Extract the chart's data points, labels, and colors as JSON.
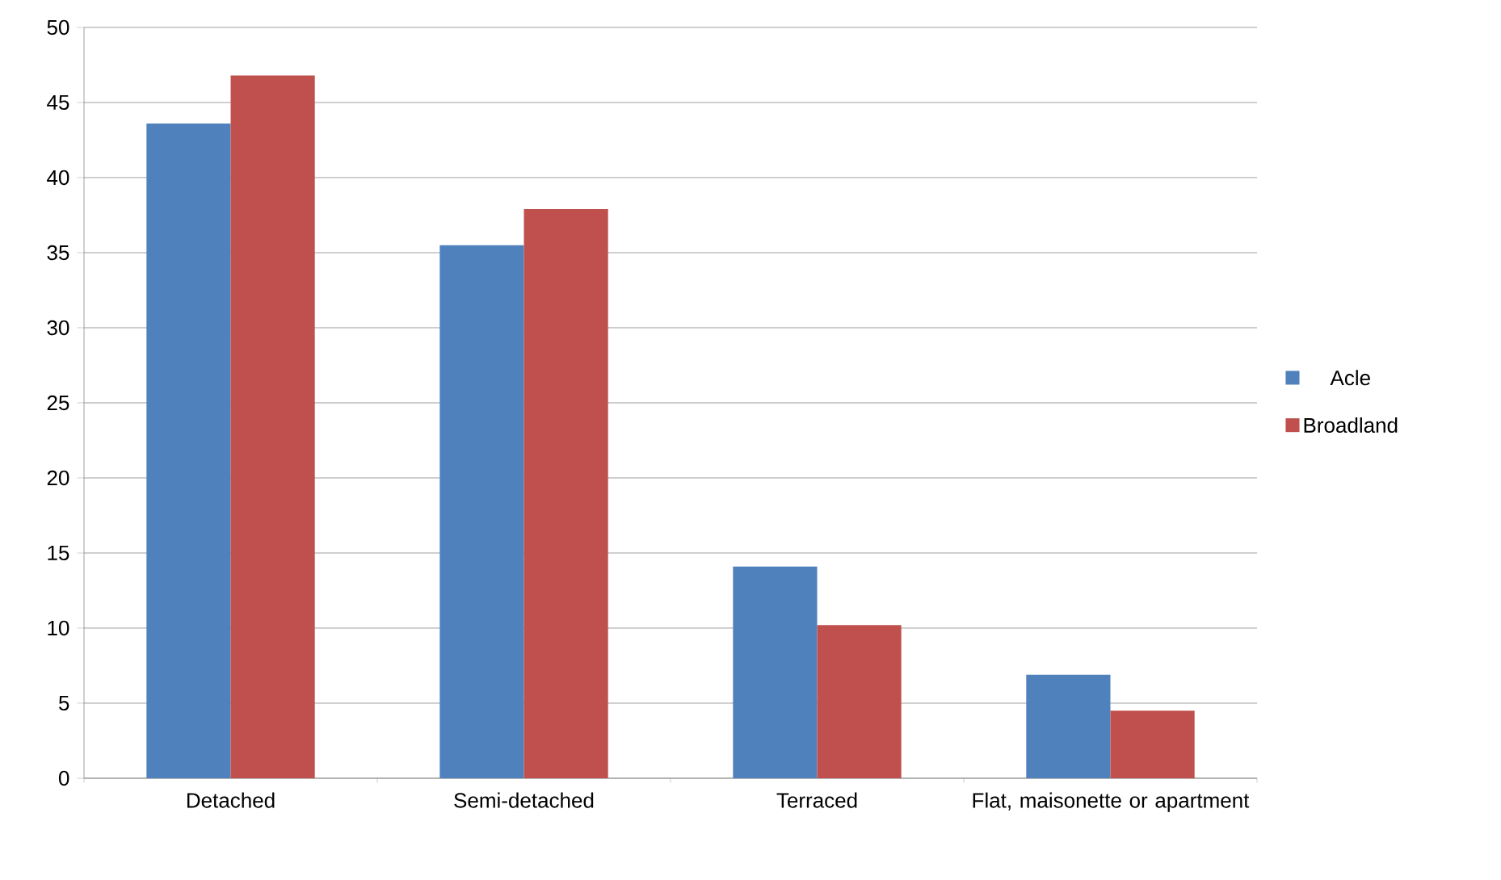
{
  "chart_data": {
    "type": "bar",
    "categories": [
      "Detached",
      "Semi-detached",
      "Terraced",
      "Flat, maisonette or apartment"
    ],
    "series": [
      {
        "name": "Acle",
        "color": "#4f81bd",
        "values": [
          43.6,
          35.5,
          14.1,
          6.9
        ]
      },
      {
        "name": "Broadland",
        "color": "#c0504d",
        "values": [
          46.8,
          37.9,
          10.2,
          4.5
        ]
      }
    ],
    "ylim": [
      0,
      50
    ],
    "yticks": [
      0,
      5,
      10,
      15,
      20,
      25,
      30,
      35,
      40,
      45,
      50
    ],
    "grid": "y",
    "legend": "right"
  }
}
